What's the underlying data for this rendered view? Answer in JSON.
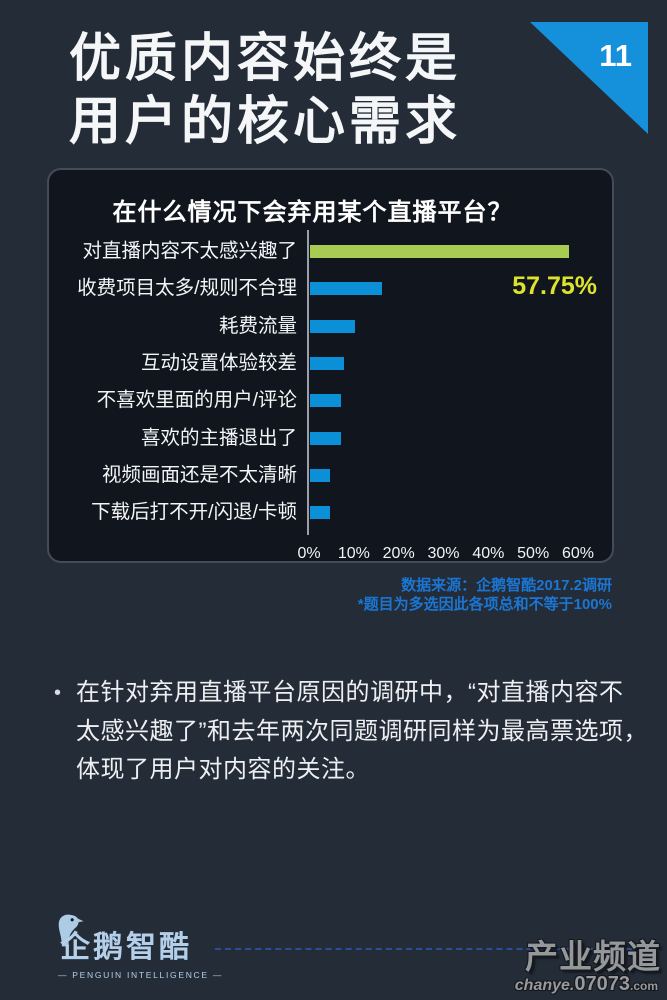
{
  "page": {
    "number": "11"
  },
  "header": {
    "title_line1": "优质内容始终是",
    "title_line2": "用户的核心需求"
  },
  "chart_panel": {
    "source_line1": "数据来源：企鹅智酷2017.2调研",
    "source_line2": "*题目为多选因此各项总和不等于100%"
  },
  "chart_data": {
    "type": "bar",
    "orientation": "horizontal",
    "title": "在什么情况下会弃用某个直播平台？",
    "categories": [
      "对直播内容不太感兴趣了",
      "收费项目太多/规则不合理",
      "耗费流量",
      "互动设置体验较差",
      "不喜欢里面的用户/评论",
      "喜欢的主播退出了",
      "视频画面还是不太清晰",
      "下载后打不开/闪退/卡顿"
    ],
    "values": [
      57.75,
      16,
      10,
      7.5,
      7,
      7,
      4.5,
      4.5
    ],
    "highlight_index": 0,
    "highlight_label": "57.75%",
    "x_ticks": [
      "0%",
      "10%",
      "20%",
      "30%",
      "40%",
      "50%",
      "60%"
    ],
    "xlim": [
      0,
      60
    ],
    "grid": false,
    "legend": false,
    "bar_color": "#0b90d8",
    "highlight_color": "#a8cc52",
    "value_label_color": "#dde32a"
  },
  "commentary": {
    "bullet": "•",
    "lines": [
      "在针对弃用直播平台原因的调研中，“对直播内容不",
      "太感兴趣了”和去年两次同题调研同样为最高票选项，",
      "体现了用户对内容的关注。"
    ]
  },
  "footer": {
    "logo_cn": "企鹅智酷",
    "logo_en": "— PENGUIN INTELLIGENCE —",
    "watermark_cn": "产业频道",
    "watermark_script": "chanye.",
    "watermark_num": "07073",
    "watermark_tld": ".com"
  }
}
